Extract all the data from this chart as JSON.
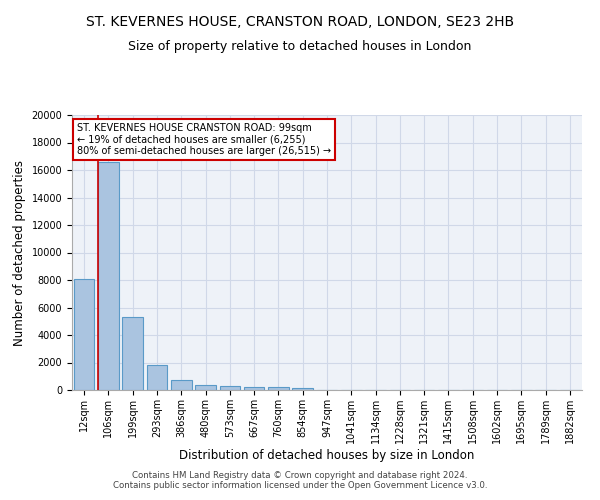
{
  "title": "ST. KEVERNES HOUSE, CRANSTON ROAD, LONDON, SE23 2HB",
  "subtitle": "Size of property relative to detached houses in London",
  "xlabel": "Distribution of detached houses by size in London",
  "ylabel": "Number of detached properties",
  "footer_line1": "Contains HM Land Registry data © Crown copyright and database right 2024.",
  "footer_line2": "Contains public sector information licensed under the Open Government Licence v3.0.",
  "bar_labels": [
    "12sqm",
    "106sqm",
    "199sqm",
    "293sqm",
    "386sqm",
    "480sqm",
    "573sqm",
    "667sqm",
    "760sqm",
    "854sqm",
    "947sqm",
    "1041sqm",
    "1134sqm",
    "1228sqm",
    "1321sqm",
    "1415sqm",
    "1508sqm",
    "1602sqm",
    "1695sqm",
    "1789sqm",
    "1882sqm"
  ],
  "bar_values": [
    8100,
    16600,
    5300,
    1850,
    700,
    370,
    270,
    230,
    190,
    165,
    0,
    0,
    0,
    0,
    0,
    0,
    0,
    0,
    0,
    0,
    0
  ],
  "bar_color": "#aac4e0",
  "bar_edge_color": "#5a9ac8",
  "red_line_x": 1,
  "annotation_text": "ST. KEVERNES HOUSE CRANSTON ROAD: 99sqm\n← 19% of detached houses are smaller (6,255)\n80% of semi-detached houses are larger (26,515) →",
  "annotation_box_color": "#ffffff",
  "annotation_border_color": "#cc0000",
  "ylim": [
    0,
    20000
  ],
  "yticks": [
    0,
    2000,
    4000,
    6000,
    8000,
    10000,
    12000,
    14000,
    16000,
    18000,
    20000
  ],
  "grid_color": "#d0d8e8",
  "bg_color": "#eef2f8",
  "title_fontsize": 10,
  "subtitle_fontsize": 9,
  "axis_fontsize": 8.5,
  "tick_fontsize": 7
}
